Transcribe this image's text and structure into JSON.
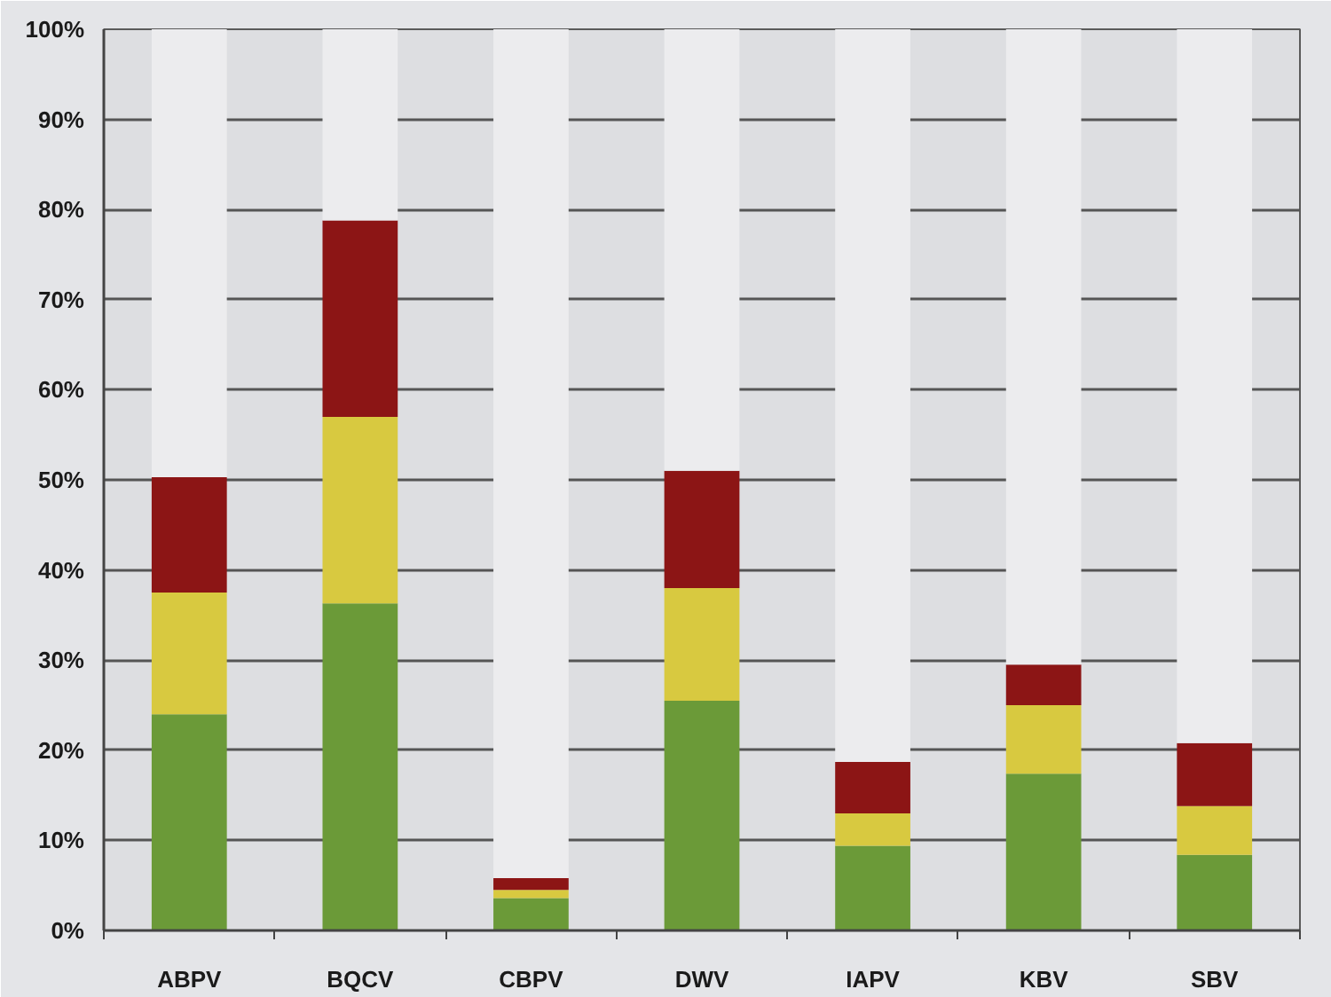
{
  "chart_data": {
    "type": "bar",
    "stacked": true,
    "categories": [
      "ABPV",
      "BQCV",
      "CBPV",
      "DWV",
      "IAPV",
      "KBV",
      "SBV"
    ],
    "series": [
      {
        "color": "#6b9a38",
        "values": [
          24.0,
          36.3,
          3.6,
          25.5,
          9.4,
          17.4,
          8.4
        ]
      },
      {
        "color": "#d8c940",
        "values": [
          13.5,
          20.7,
          0.9,
          12.5,
          3.6,
          7.6,
          5.4
        ]
      },
      {
        "color": "#8c1515",
        "values": [
          12.8,
          21.8,
          1.3,
          13.0,
          5.7,
          4.5,
          7.0
        ]
      },
      {
        "color": "#ececee",
        "values": [
          49.7,
          21.2,
          94.2,
          49.0,
          81.3,
          70.5,
          79.2
        ]
      }
    ],
    "ylim": [
      0,
      100
    ],
    "yticks": [
      {
        "value": 0,
        "label": "0%"
      },
      {
        "value": 10,
        "label": "10%"
      },
      {
        "value": 20,
        "label": "20%"
      },
      {
        "value": 30,
        "label": "30%"
      },
      {
        "value": 40,
        "label": "40%"
      },
      {
        "value": 50,
        "label": "50%"
      },
      {
        "value": 60,
        "label": "60%"
      },
      {
        "value": 70,
        "label": "70%"
      },
      {
        "value": 80,
        "label": "80%"
      },
      {
        "value": 90,
        "label": "90%"
      },
      {
        "value": 100,
        "label": "100%"
      }
    ],
    "grid": "y"
  }
}
